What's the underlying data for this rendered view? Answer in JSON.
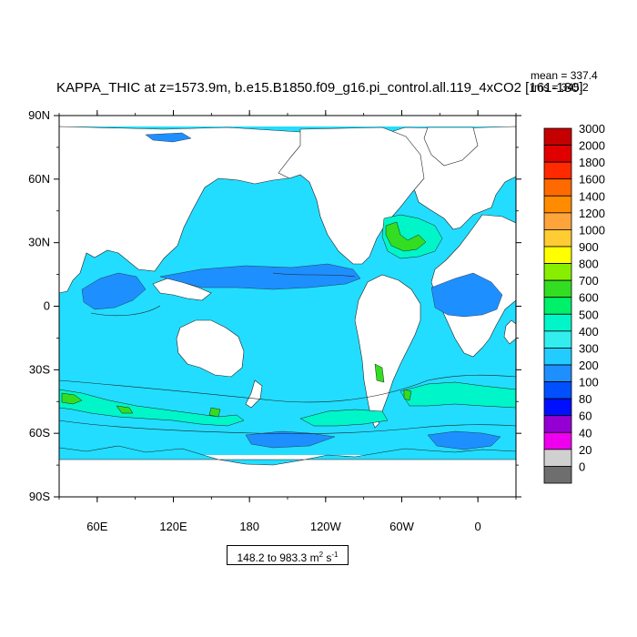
{
  "title": "KAPPA_THIC at z=1573.9m, b.e15.B1850.f09_g16.pi_control.all.119_4xCO2 [161-180]",
  "stats": {
    "mean": "mean = 337.4",
    "rms": "rms = 345.2"
  },
  "y_ticks": [
    {
      "label": "90N",
      "lat": 90
    },
    {
      "label": "60N",
      "lat": 60
    },
    {
      "label": "30N",
      "lat": 30
    },
    {
      "label": "0",
      "lat": 0
    },
    {
      "label": "30S",
      "lat": -30
    },
    {
      "label": "60S",
      "lat": -60
    },
    {
      "label": "90S",
      "lat": -90
    }
  ],
  "x_ticks": [
    {
      "label": "60E",
      "lon": 60
    },
    {
      "label": "120E",
      "lon": 120
    },
    {
      "label": "180",
      "lon": 180
    },
    {
      "label": "120W",
      "lon": 240
    },
    {
      "label": "60W",
      "lon": 300
    },
    {
      "label": "0",
      "lon": 360
    }
  ],
  "colorbar": [
    {
      "label": "3000",
      "color": "#c40000"
    },
    {
      "label": "2000",
      "color": "#e00000"
    },
    {
      "label": "1800",
      "color": "#ff2a00"
    },
    {
      "label": "1600",
      "color": "#ff6a00"
    },
    {
      "label": "1400",
      "color": "#ff8c00"
    },
    {
      "label": "1200",
      "color": "#ffa43a"
    },
    {
      "label": "1000",
      "color": "#ffcc33"
    },
    {
      "label": "900",
      "color": "#ffff00"
    },
    {
      "label": "800",
      "color": "#88ee00"
    },
    {
      "label": "700",
      "color": "#33dd22"
    },
    {
      "label": "600",
      "color": "#00f06a"
    },
    {
      "label": "500",
      "color": "#00f5c8"
    },
    {
      "label": "400",
      "color": "#33eeee"
    },
    {
      "label": "300",
      "color": "#22ccff"
    },
    {
      "label": "200",
      "color": "#1e8fff"
    },
    {
      "label": "100",
      "color": "#0050ff"
    },
    {
      "label": "80",
      "color": "#0010ff"
    },
    {
      "label": "60",
      "color": "#9400d3"
    },
    {
      "label": "40",
      "color": "#ee00ee"
    },
    {
      "label": "20",
      "color": "#d0d0d0"
    },
    {
      "label": "0",
      "color": "#6e6e6e"
    }
  ],
  "range": {
    "text": "148.2 to 983.3 m",
    "sup1": "2",
    "mid": " s",
    "sup2": "-1"
  },
  "colors": {
    "ocean": "#22ddff",
    "land": "#ffffff",
    "high": "#00f5c8",
    "higher": "#33dd22",
    "low": "#1e8fff"
  }
}
